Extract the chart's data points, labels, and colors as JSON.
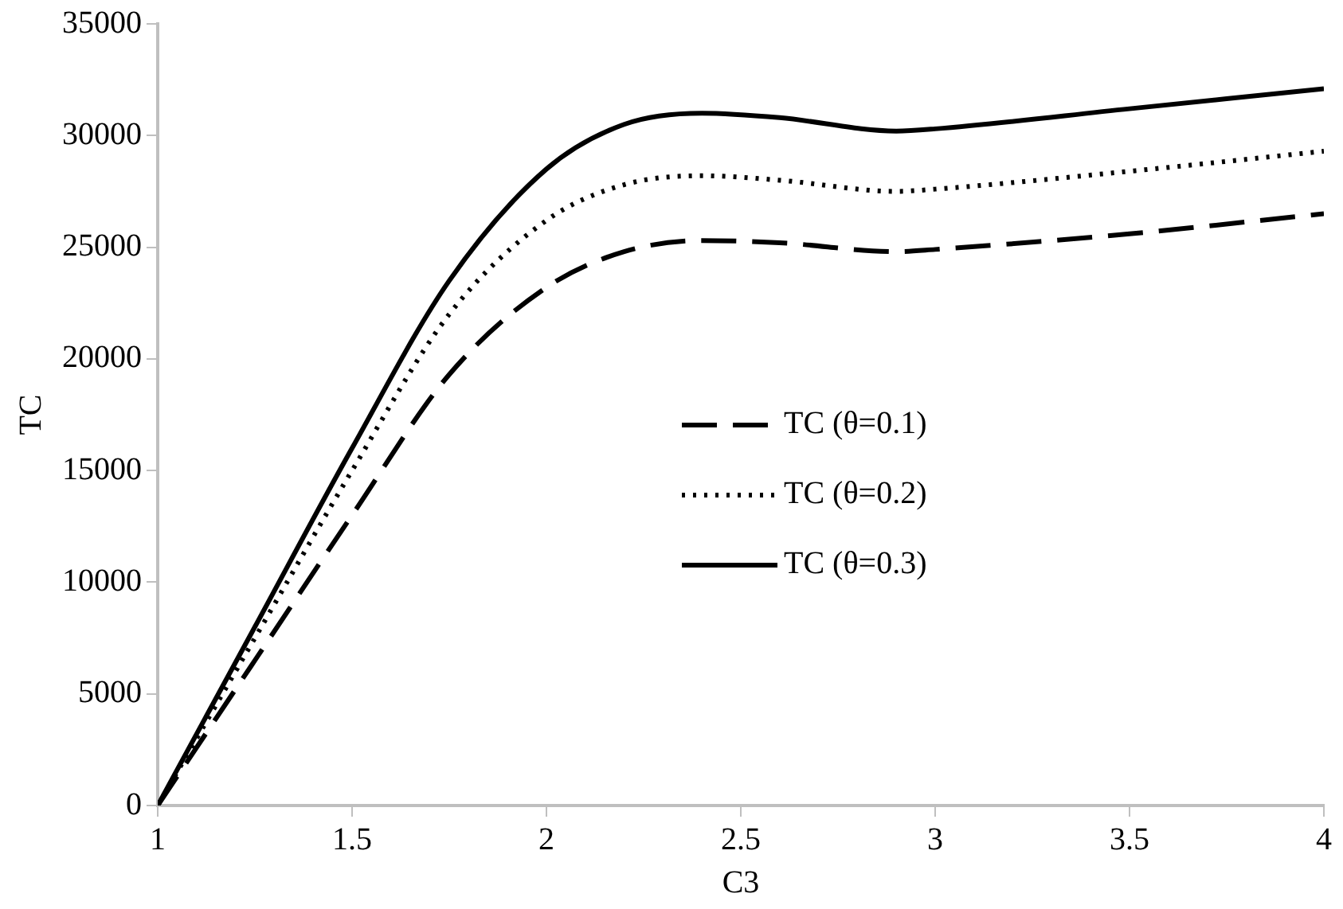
{
  "chart_data": {
    "type": "line",
    "xlabel": "C3",
    "ylabel": "TC",
    "xlim": [
      1,
      4
    ],
    "xticks": [
      1,
      1.5,
      2,
      2.5,
      3,
      3.5,
      4
    ],
    "ylim": [
      0,
      35000
    ],
    "yticks": [
      0,
      5000,
      10000,
      15000,
      20000,
      25000,
      30000,
      35000
    ],
    "grid": false,
    "legend": "center",
    "marker": "none",
    "x": [
      1,
      1.25,
      1.5,
      1.75,
      2,
      2.2,
      2.4,
      2.6,
      2.9,
      3,
      3.5,
      4
    ],
    "series": [
      {
        "name": "TC (θ=0.1)",
        "color": "#000000",
        "line_style": "dashed",
        "values": [
          0,
          6500,
          13000,
          19300,
          23200,
          24800,
          25300,
          25200,
          24800,
          24900,
          25600,
          26500
        ]
      },
      {
        "name": "TC (θ=0.2)",
        "color": "#000000",
        "line_style": "dotted",
        "values": [
          0,
          7500,
          15000,
          22000,
          26200,
          27800,
          28200,
          28000,
          27500,
          27600,
          28400,
          29300
        ]
      },
      {
        "name": "TC (θ=0.3)",
        "color": "#000000",
        "line_style": "solid",
        "values": [
          0,
          8000,
          16000,
          23500,
          28500,
          30500,
          31000,
          30800,
          30200,
          30300,
          31200,
          32100
        ]
      }
    ]
  }
}
